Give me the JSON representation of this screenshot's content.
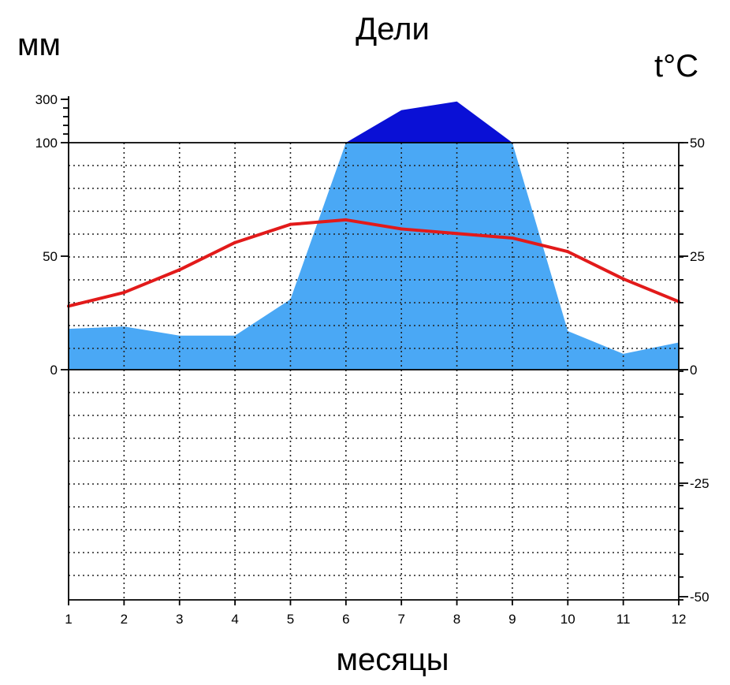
{
  "chart_data": {
    "type": "climate-diagram",
    "title": "Дели",
    "left_axis_label": "мм",
    "right_axis_label": "t°C",
    "xlabel": "месяцы",
    "x": [
      1,
      2,
      3,
      4,
      5,
      6,
      7,
      8,
      9,
      10,
      11,
      12
    ],
    "x_tick_labels": [
      "1",
      "2",
      "3",
      "4",
      "5",
      "6",
      "7",
      "8",
      "9",
      "10",
      "11",
      "12"
    ],
    "precip_axis": {
      "ticks": [
        0,
        50,
        100,
        300
      ],
      "tick_labels": [
        "0",
        "50",
        "100",
        "300"
      ],
      "linear_range": [
        0,
        100
      ],
      "compressed_range": [
        100,
        300
      ]
    },
    "temp_axis": {
      "ticks": [
        -50,
        -25,
        0,
        25,
        50
      ],
      "tick_labels": [
        "-50",
        "-25",
        "0",
        "25",
        "50"
      ],
      "range": [
        -50,
        50
      ]
    },
    "series": [
      {
        "kind": "precipitation",
        "unit": "mm",
        "values": [
          18,
          19,
          15,
          15,
          31,
          100,
          250,
          290,
          100,
          17,
          7,
          12
        ],
        "color_normal": "#4aa8f5",
        "color_excess": "#0a10d6"
      },
      {
        "kind": "temperature",
        "unit": "°C",
        "values": [
          14,
          17,
          22,
          28,
          32,
          33,
          31,
          30,
          29,
          26,
          20,
          15
        ],
        "color": "#e21a1a"
      }
    ],
    "grid": true
  }
}
